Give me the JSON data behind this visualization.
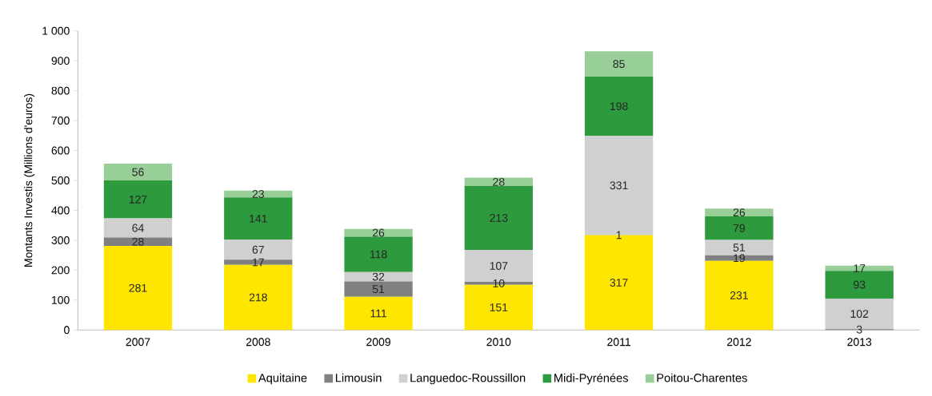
{
  "chart_data": {
    "type": "bar",
    "stacked": true,
    "ylabel": "Montants Investis (Millions d'euros)",
    "categories": [
      "2007",
      "2008",
      "2009",
      "2010",
      "2011",
      "2012",
      "2013"
    ],
    "series": [
      {
        "name": "Aquitaine",
        "color": "#ffe600",
        "values": [
          281,
          218,
          111,
          151,
          317,
          231,
          null
        ]
      },
      {
        "name": "Limousin",
        "color": "#808080",
        "values": [
          28,
          17,
          51,
          10,
          1,
          19,
          3
        ]
      },
      {
        "name": "Languedoc-Roussillon",
        "color": "#d0d0d0",
        "values": [
          64,
          67,
          32,
          107,
          331,
          51,
          102
        ]
      },
      {
        "name": "Midi-Pyrénées",
        "color": "#2e9a3e",
        "values": [
          127,
          141,
          118,
          213,
          198,
          79,
          93
        ]
      },
      {
        "name": "Poitou-Charentes",
        "color": "#98cf98",
        "values": [
          56,
          23,
          26,
          28,
          85,
          26,
          17
        ]
      }
    ],
    "ylim": [
      0,
      1000
    ],
    "yticks": [
      0,
      100,
      200,
      300,
      400,
      500,
      600,
      700,
      800,
      900,
      {
        "value": 1000,
        "label": "1 000"
      }
    ],
    "data_labels": true,
    "legend": "bottom",
    "grid": false
  }
}
